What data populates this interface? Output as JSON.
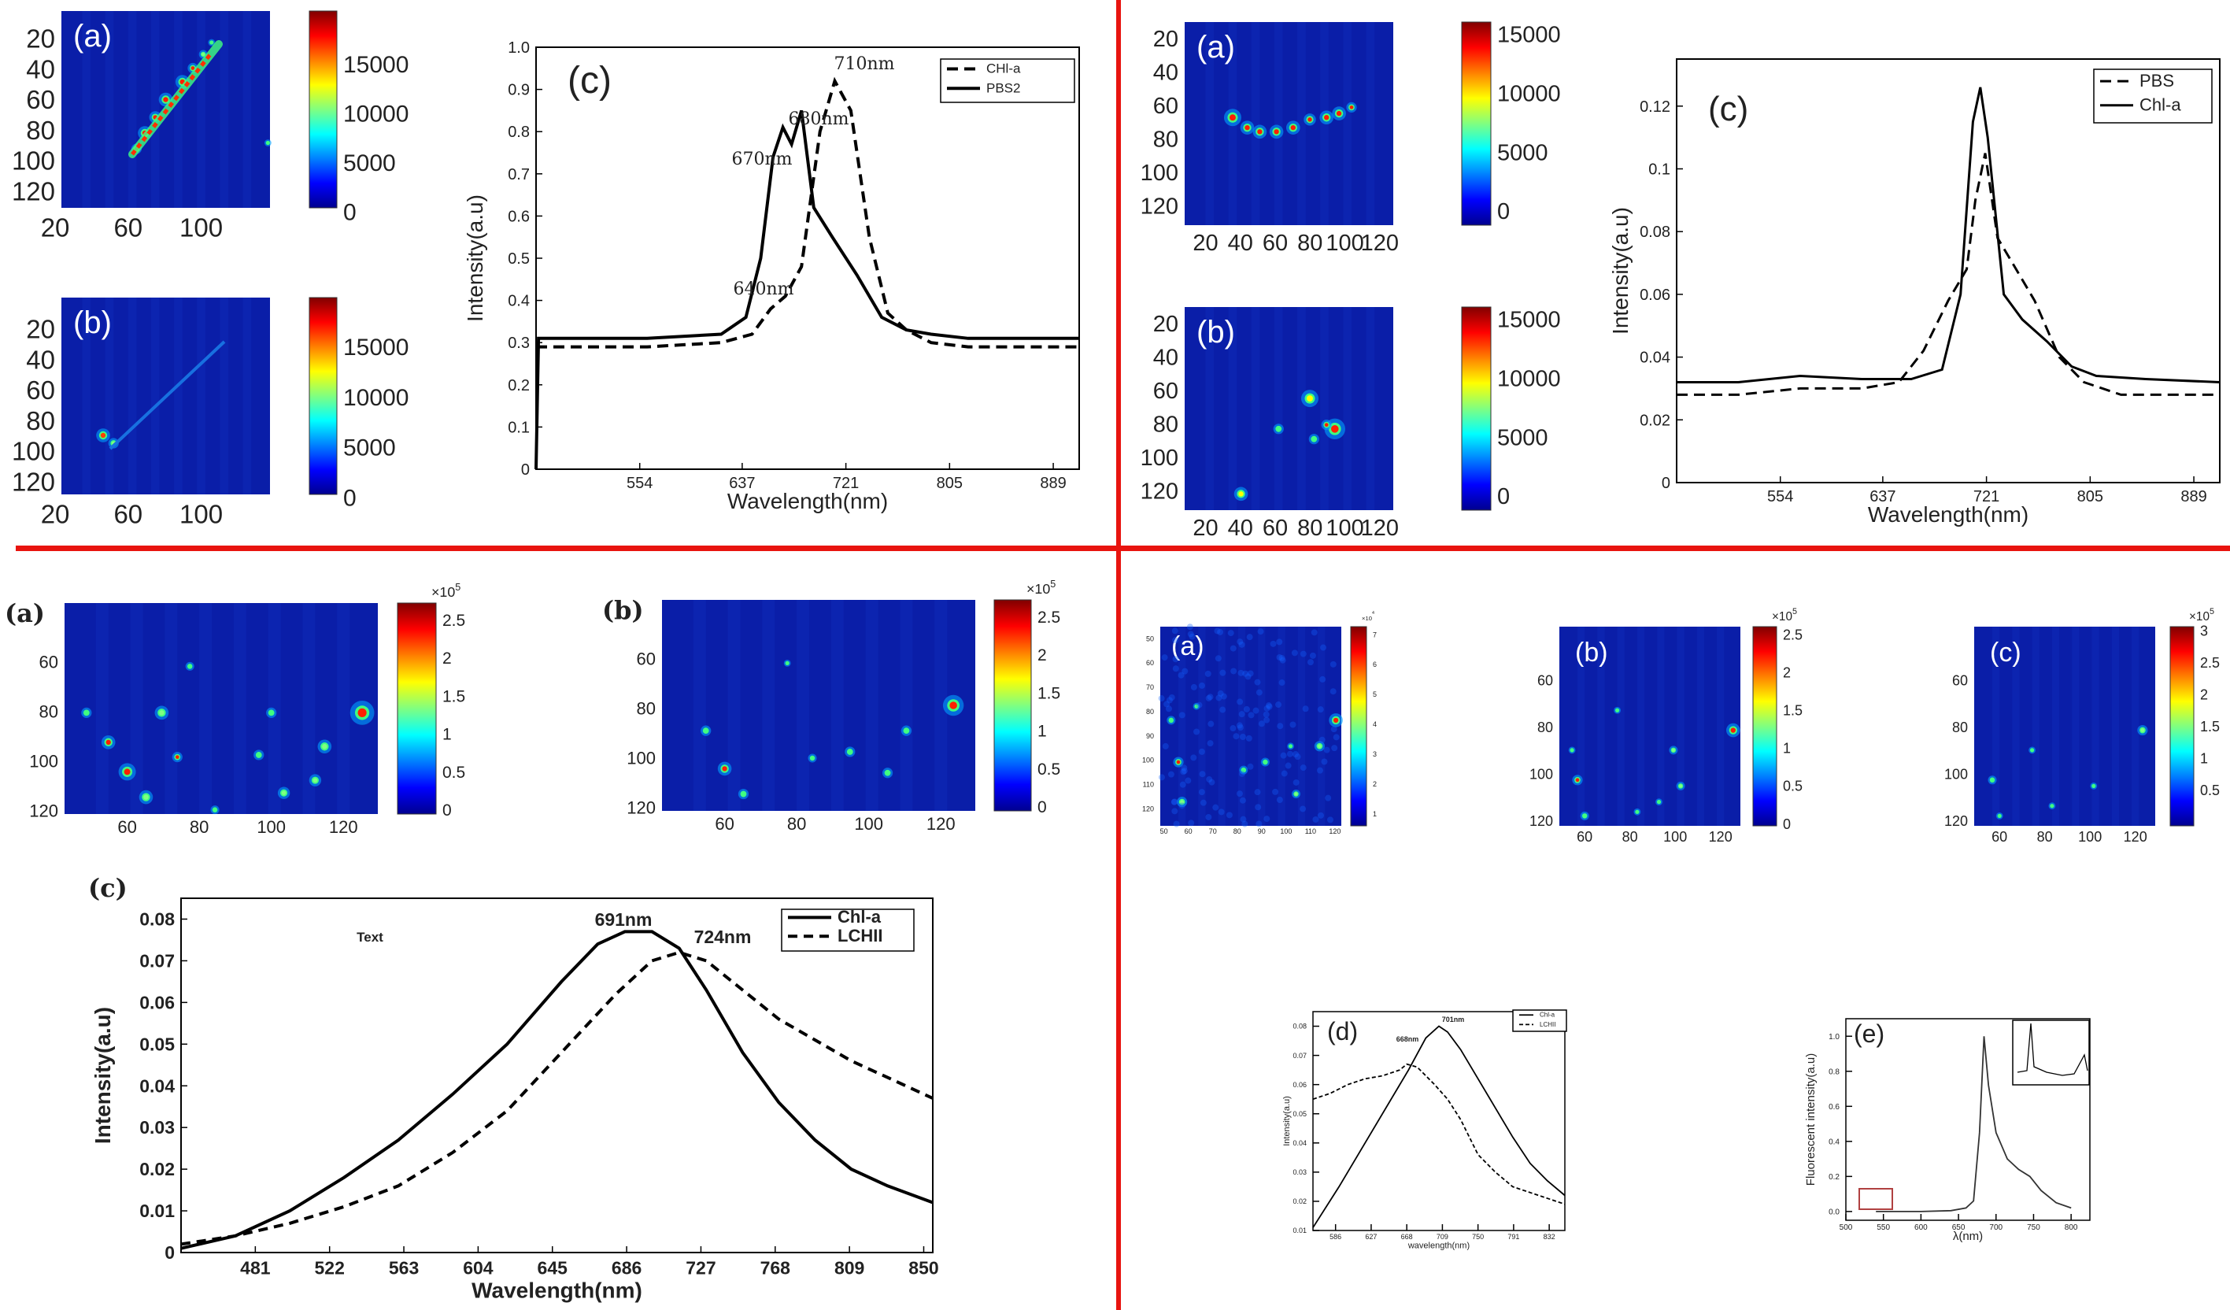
{
  "colormap": [
    "#00008f",
    "#0000ff",
    "#0080ff",
    "#00ffff",
    "#80ff80",
    "#ffff00",
    "#ff8000",
    "#ff0000",
    "#800000"
  ],
  "dividers": {
    "color": "#e8140f"
  },
  "quadrants": {
    "q1": {
      "heatmaps": [
        {
          "label": "(a)",
          "xticks": [
            "20",
            "60",
            "100"
          ],
          "yticks": [
            "20",
            "40",
            "60",
            "80",
            "100",
            "120"
          ],
          "cbar": [
            "15000",
            "10000",
            "5000",
            "0"
          ],
          "bg": "#0a1ea8"
        },
        {
          "label": "(b)",
          "xticks": [
            "20",
            "60",
            "100"
          ],
          "yticks": [
            "20",
            "40",
            "60",
            "80",
            "100",
            "120"
          ],
          "cbar": [
            "15000",
            "10000",
            "5000",
            "0"
          ],
          "bg": "#0a1ea8"
        }
      ],
      "spectrum": {
        "label": "(c)",
        "type": "line",
        "xlabel": "Wavelength(nm)",
        "ylabel": "Intensity(a.u)",
        "xticks": [
          "554",
          "637",
          "721",
          "805",
          "889"
        ],
        "yticks": [
          "0",
          "0.1",
          "0.2",
          "0.3",
          "0.4",
          "0.5",
          "0.6",
          "0.7",
          "0.8",
          "0.9",
          "1.0"
        ],
        "xlim": [
          470,
          910
        ],
        "ylim": [
          0,
          1.0
        ],
        "legend": [
          "CHl-a",
          "PBS2"
        ],
        "annotations": [
          "710nm",
          "680nm",
          "670nm",
          "640nm"
        ],
        "series": [
          {
            "name": "CHl-a",
            "dash": true,
            "x": [
              470,
              500,
              560,
              620,
              645,
              660,
              672,
              685,
              700,
              712,
              725,
              740,
              755,
              770,
              790,
              820,
              860,
              910
            ],
            "y": [
              0.29,
              0.29,
              0.29,
              0.3,
              0.32,
              0.38,
              0.41,
              0.48,
              0.8,
              0.92,
              0.85,
              0.55,
              0.37,
              0.33,
              0.3,
              0.29,
              0.29,
              0.29
            ]
          },
          {
            "name": "PBS2",
            "dash": false,
            "x": [
              470,
              472,
              500,
              560,
              620,
              640,
              652,
              662,
              670,
              677,
              685,
              695,
              710,
              730,
              750,
              770,
              790,
              820,
              860,
              910
            ],
            "y": [
              0.0,
              0.31,
              0.31,
              0.31,
              0.32,
              0.36,
              0.5,
              0.74,
              0.81,
              0.77,
              0.85,
              0.62,
              0.55,
              0.46,
              0.36,
              0.33,
              0.32,
              0.31,
              0.31,
              0.31
            ]
          }
        ]
      }
    },
    "q2": {
      "heatmaps": [
        {
          "label": "(a)",
          "xticks": [
            "20",
            "40",
            "60",
            "80",
            "100",
            "120"
          ],
          "yticks": [
            "20",
            "40",
            "60",
            "80",
            "100",
            "120"
          ],
          "cbar": [
            "15000",
            "10000",
            "5000",
            "0"
          ],
          "bg": "#0a1ea8"
        },
        {
          "label": "(b)",
          "xticks": [
            "20",
            "40",
            "60",
            "80",
            "100",
            "120"
          ],
          "yticks": [
            "20",
            "40",
            "60",
            "80",
            "100",
            "120"
          ],
          "cbar": [
            "15000",
            "10000",
            "5000",
            "0"
          ],
          "bg": "#0a1ea8"
        }
      ],
      "spectrum": {
        "label": "(c)",
        "type": "line",
        "xlabel": "Wavelength(nm)",
        "ylabel": "Intensity(a.u)",
        "xticks": [
          "554",
          "637",
          "721",
          "805",
          "889"
        ],
        "yticks": [
          "0",
          "0.02",
          "0.04",
          "0.06",
          "0.08",
          "0.1",
          "0.12"
        ],
        "xlim": [
          470,
          910
        ],
        "ylim": [
          0,
          0.135
        ],
        "legend": [
          "PBS",
          "Chl-a"
        ],
        "series": [
          {
            "name": "PBS",
            "dash": true,
            "x": [
              470,
              520,
              570,
              620,
              650,
              670,
              690,
              705,
              712,
              720,
              730,
              745,
              760,
              780,
              800,
              830,
              870,
              910
            ],
            "y": [
              0.028,
              0.028,
              0.03,
              0.03,
              0.032,
              0.042,
              0.058,
              0.068,
              0.09,
              0.105,
              0.078,
              0.068,
              0.058,
              0.04,
              0.032,
              0.028,
              0.028,
              0.028
            ]
          },
          {
            "name": "Chl-a",
            "dash": false,
            "x": [
              470,
              520,
              570,
              620,
              660,
              685,
              700,
              710,
              716,
              722,
              735,
              750,
              770,
              790,
              810,
              850,
              910
            ],
            "y": [
              0.032,
              0.032,
              0.034,
              0.033,
              0.033,
              0.036,
              0.06,
              0.115,
              0.126,
              0.11,
              0.06,
              0.052,
              0.045,
              0.037,
              0.034,
              0.033,
              0.032
            ]
          }
        ]
      }
    },
    "q3": {
      "heatmaps": [
        {
          "label": "(a)",
          "xticks": [
            "60",
            "80",
            "100",
            "120"
          ],
          "yticks": [
            "60",
            "80",
            "100",
            "120"
          ],
          "cbar": [
            "2.5",
            "2",
            "1.5",
            "1",
            "0.5",
            "0"
          ],
          "exp": "×10",
          "expPow": "5",
          "bg": "#0a1ea8"
        },
        {
          "label": "(b)",
          "xticks": [
            "60",
            "80",
            "100",
            "120"
          ],
          "yticks": [
            "60",
            "80",
            "100",
            "120"
          ],
          "cbar": [
            "2.5",
            "2",
            "1.5",
            "1",
            "0.5",
            "0"
          ],
          "exp": "×10",
          "expPow": "5",
          "bg": "#0a1ea8"
        }
      ],
      "spectrum": {
        "label": "(c)",
        "type": "line",
        "xlabel": "Wavelength(nm)",
        "ylabel": "Intensity(a.u)",
        "xticks": [
          "481",
          "522",
          "563",
          "604",
          "645",
          "686",
          "727",
          "768",
          "809",
          "850"
        ],
        "yticks": [
          "0",
          "0.01",
          "0.02",
          "0.03",
          "0.04",
          "0.05",
          "0.06",
          "0.07",
          "0.08"
        ],
        "xlim": [
          440,
          855
        ],
        "ylim": [
          0,
          0.085
        ],
        "legend": [
          "Chl-a",
          "LCHII"
        ],
        "annotations": [
          "691nm",
          "724nm",
          "Text"
        ],
        "series": [
          {
            "name": "Chl-a",
            "dash": false,
            "x": [
              440,
              470,
              500,
              530,
              560,
              590,
              620,
              650,
              670,
              685,
              700,
              715,
              730,
              750,
              770,
              790,
              810,
              830,
              855
            ],
            "y": [
              0.001,
              0.004,
              0.01,
              0.018,
              0.027,
              0.038,
              0.05,
              0.065,
              0.074,
              0.077,
              0.077,
              0.073,
              0.063,
              0.048,
              0.036,
              0.027,
              0.02,
              0.016,
              0.012
            ]
          },
          {
            "name": "LCHII",
            "dash": true,
            "x": [
              440,
              470,
              500,
              530,
              560,
              590,
              620,
              650,
              680,
              700,
              715,
              730,
              750,
              770,
              790,
              810,
              830,
              855
            ],
            "y": [
              0.002,
              0.004,
              0.007,
              0.011,
              0.016,
              0.024,
              0.034,
              0.048,
              0.062,
              0.07,
              0.072,
              0.07,
              0.063,
              0.056,
              0.051,
              0.046,
              0.042,
              0.037
            ]
          }
        ]
      }
    },
    "q4": {
      "heatmaps": [
        {
          "label": "(a)",
          "xticks": [
            "50",
            "60",
            "70",
            "80",
            "90",
            "100",
            "110",
            "120"
          ],
          "yticks": [
            "50",
            "60",
            "70",
            "80",
            "90",
            "100",
            "110",
            "120"
          ],
          "cbar": [
            "7",
            "6",
            "5",
            "4",
            "3",
            "2",
            "1"
          ],
          "exp": "×10",
          "expPow": "4",
          "bg": "#0a1ea8"
        },
        {
          "label": "(b)",
          "xticks": [
            "60",
            "80",
            "100",
            "120"
          ],
          "yticks": [
            "60",
            "80",
            "100",
            "120"
          ],
          "cbar": [
            "2.5",
            "2",
            "1.5",
            "1",
            "0.5",
            "0"
          ],
          "exp": "×10",
          "expPow": "5",
          "bg": "#0a1ea8"
        },
        {
          "label": "(c)",
          "xticks": [
            "60",
            "80",
            "100",
            "120"
          ],
          "yticks": [
            "60",
            "80",
            "100",
            "120"
          ],
          "cbar": [
            "3",
            "2.5",
            "2",
            "1.5",
            "1",
            "0.5"
          ],
          "exp": "×10",
          "expPow": "5",
          "bg": "#0a1ea8"
        }
      ],
      "spectrum_d": {
        "label": "(d)",
        "type": "line",
        "xlabel": "wavelength(nm)",
        "ylabel": "Intensity(a.u)",
        "xticks": [
          "586",
          "627",
          "668",
          "709",
          "750",
          "791",
          "832"
        ],
        "yticks": [
          "0.01",
          "0.02",
          "0.03",
          "0.04",
          "0.05",
          "0.06",
          "0.07",
          "0.08"
        ],
        "xlim": [
          560,
          850
        ],
        "ylim": [
          0.01,
          0.085
        ],
        "legend": [
          "Chl-a",
          "LCHII"
        ],
        "annotations": [
          "701nm",
          "668nm"
        ],
        "series": [
          {
            "name": "Chl-a",
            "dash": false,
            "x": [
              560,
              590,
              620,
              650,
              670,
              690,
              705,
              715,
              730,
              750,
              770,
              790,
              810,
              830,
              850
            ],
            "y": [
              0.011,
              0.025,
              0.04,
              0.055,
              0.065,
              0.076,
              0.08,
              0.078,
              0.072,
              0.062,
              0.052,
              0.042,
              0.033,
              0.027,
              0.022
            ]
          },
          {
            "name": "LCHII",
            "dash": true,
            "x": [
              560,
              580,
              600,
              620,
              640,
              660,
              668,
              680,
              700,
              715,
              730,
              750,
              770,
              790,
              810,
              830,
              850
            ],
            "y": [
              0.055,
              0.057,
              0.06,
              0.062,
              0.063,
              0.065,
              0.067,
              0.066,
              0.06,
              0.055,
              0.048,
              0.036,
              0.03,
              0.025,
              0.023,
              0.021,
              0.019
            ]
          }
        ]
      },
      "spectrum_e": {
        "label": "(e)",
        "type": "line",
        "xlabel": "λ(nm)",
        "ylabel": "Fluorescent intensity(a.u)",
        "xticks": [
          "500",
          "550",
          "600",
          "650",
          "700",
          "750",
          "800"
        ],
        "yticks": [
          "0.0",
          "0.2",
          "0.4",
          "0.6",
          "0.8",
          "1.0"
        ],
        "xlim": [
          500,
          825
        ],
        "ylim": [
          -0.05,
          1.1
        ],
        "series": [
          {
            "name": "",
            "dash": false,
            "x": [
              540,
              560,
              600,
              640,
              660,
              670,
              678,
              684,
              690,
              700,
              715,
              730,
              745,
              760,
              780,
              800
            ],
            "y": [
              0.0,
              0.0,
              0.0,
              0.005,
              0.02,
              0.06,
              0.45,
              1.0,
              0.72,
              0.45,
              0.3,
              0.24,
              0.2,
              0.12,
              0.05,
              0.02
            ]
          }
        ]
      }
    }
  }
}
